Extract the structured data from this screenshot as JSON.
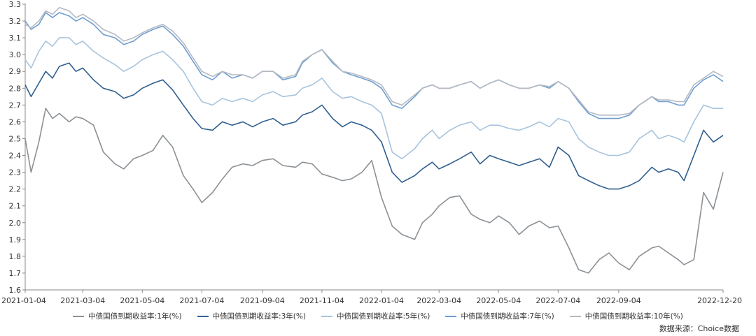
{
  "chart_data": {
    "type": "line",
    "xlabel": "",
    "ylabel": "",
    "ylim": [
      1.6,
      3.3
    ],
    "yticks": [
      "1.6",
      "1.7",
      "1.8",
      "1.9",
      "2.0",
      "2.1",
      "2.2",
      "2.3",
      "2.4",
      "2.5",
      "2.6",
      "2.7",
      "2.8",
      "2.9",
      "3.0",
      "3.1",
      "3.2",
      "3.3"
    ],
    "x_tick_labels": [
      "2021-01-04",
      "2021-03-04",
      "2021-05-04",
      "2021-07-04",
      "2021-09-04",
      "2021-11-04",
      "2022-01-04",
      "2022-03-04",
      "2022-05-04",
      "2022-07-04",
      "2022-09-04",
      "2022-12-20"
    ],
    "grid": false,
    "legend_position": "bottom",
    "source": "数据来源：Choice数据",
    "x": [
      "2021-01-04",
      "2021-01-10",
      "2021-01-18",
      "2021-01-25",
      "2021-02-01",
      "2021-02-08",
      "2021-02-18",
      "2021-02-25",
      "2021-03-04",
      "2021-03-15",
      "2021-03-25",
      "2021-04-06",
      "2021-04-15",
      "2021-04-25",
      "2021-05-04",
      "2021-05-15",
      "2021-05-25",
      "2021-06-04",
      "2021-06-15",
      "2021-06-25",
      "2021-07-04",
      "2021-07-15",
      "2021-07-25",
      "2021-08-04",
      "2021-08-15",
      "2021-08-25",
      "2021-09-04",
      "2021-09-15",
      "2021-09-25",
      "2021-10-08",
      "2021-10-15",
      "2021-10-25",
      "2021-11-04",
      "2021-11-15",
      "2021-11-25",
      "2021-12-04",
      "2021-12-15",
      "2021-12-25",
      "2022-01-04",
      "2022-01-15",
      "2022-01-25",
      "2022-02-07",
      "2022-02-15",
      "2022-02-25",
      "2022-03-04",
      "2022-03-15",
      "2022-03-25",
      "2022-04-06",
      "2022-04-15",
      "2022-04-25",
      "2022-05-04",
      "2022-05-15",
      "2022-05-25",
      "2022-06-04",
      "2022-06-15",
      "2022-06-25",
      "2022-07-04",
      "2022-07-15",
      "2022-07-25",
      "2022-08-04",
      "2022-08-15",
      "2022-08-25",
      "2022-09-04",
      "2022-09-15",
      "2022-09-25",
      "2022-10-08",
      "2022-10-15",
      "2022-10-25",
      "2022-11-04",
      "2022-11-10",
      "2022-11-20",
      "2022-11-30",
      "2022-12-10",
      "2022-12-20"
    ],
    "series": [
      {
        "name": "中债国债到期收益率:1年(%)",
        "color": "#8c9196",
        "values": [
          2.5,
          2.3,
          2.48,
          2.68,
          2.62,
          2.65,
          2.6,
          2.63,
          2.62,
          2.58,
          2.42,
          2.35,
          2.32,
          2.38,
          2.4,
          2.43,
          2.52,
          2.45,
          2.28,
          2.2,
          2.12,
          2.18,
          2.26,
          2.33,
          2.35,
          2.34,
          2.37,
          2.38,
          2.34,
          2.33,
          2.36,
          2.35,
          2.29,
          2.27,
          2.25,
          2.26,
          2.3,
          2.37,
          2.15,
          1.98,
          1.93,
          1.9,
          2.0,
          2.05,
          2.1,
          2.15,
          2.16,
          2.05,
          2.02,
          2.0,
          2.04,
          2.0,
          1.93,
          1.98,
          2.01,
          1.97,
          1.98,
          1.85,
          1.72,
          1.7,
          1.78,
          1.82,
          1.76,
          1.72,
          1.8,
          1.85,
          1.86,
          1.82,
          1.78,
          1.75,
          1.78,
          2.18,
          2.08,
          2.3
        ]
      },
      {
        "name": "中债国债到期收益率:3年(%)",
        "color": "#2f5f8f",
        "values": [
          2.82,
          2.75,
          2.83,
          2.9,
          2.86,
          2.93,
          2.95,
          2.9,
          2.92,
          2.85,
          2.8,
          2.78,
          2.74,
          2.76,
          2.8,
          2.83,
          2.85,
          2.79,
          2.7,
          2.62,
          2.56,
          2.55,
          2.6,
          2.58,
          2.6,
          2.57,
          2.6,
          2.62,
          2.58,
          2.6,
          2.64,
          2.66,
          2.7,
          2.62,
          2.57,
          2.6,
          2.58,
          2.55,
          2.48,
          2.3,
          2.24,
          2.28,
          2.32,
          2.36,
          2.32,
          2.35,
          2.38,
          2.42,
          2.35,
          2.4,
          2.38,
          2.36,
          2.34,
          2.36,
          2.38,
          2.33,
          2.45,
          2.4,
          2.28,
          2.25,
          2.22,
          2.2,
          2.2,
          2.22,
          2.25,
          2.33,
          2.3,
          2.32,
          2.3,
          2.25,
          2.4,
          2.55,
          2.48,
          2.52
        ]
      },
      {
        "name": "中债国债到期收益率:5年(%)",
        "color": "#a7c4de",
        "values": [
          2.97,
          2.92,
          3.02,
          3.08,
          3.05,
          3.1,
          3.1,
          3.06,
          3.08,
          3.02,
          2.98,
          2.94,
          2.9,
          2.93,
          2.97,
          3.0,
          3.02,
          2.97,
          2.9,
          2.8,
          2.72,
          2.7,
          2.74,
          2.72,
          2.74,
          2.72,
          2.76,
          2.78,
          2.75,
          2.76,
          2.8,
          2.82,
          2.86,
          2.78,
          2.74,
          2.75,
          2.72,
          2.7,
          2.65,
          2.42,
          2.38,
          2.44,
          2.5,
          2.55,
          2.5,
          2.55,
          2.58,
          2.6,
          2.55,
          2.58,
          2.58,
          2.56,
          2.55,
          2.57,
          2.6,
          2.57,
          2.62,
          2.6,
          2.5,
          2.45,
          2.42,
          2.4,
          2.4,
          2.42,
          2.5,
          2.55,
          2.5,
          2.52,
          2.5,
          2.48,
          2.6,
          2.7,
          2.68,
          2.68
        ]
      },
      {
        "name": "中债国债到期收益率:7年(%)",
        "color": "#6e9ed0",
        "values": [
          3.2,
          3.15,
          3.18,
          3.25,
          3.22,
          3.25,
          3.23,
          3.2,
          3.22,
          3.18,
          3.12,
          3.1,
          3.06,
          3.08,
          3.12,
          3.15,
          3.17,
          3.12,
          3.05,
          2.96,
          2.88,
          2.85,
          2.9,
          2.86,
          2.88,
          2.86,
          2.9,
          2.9,
          2.85,
          2.87,
          2.95,
          3.0,
          3.03,
          2.95,
          2.9,
          2.88,
          2.86,
          2.84,
          2.8,
          2.7,
          2.68,
          2.75,
          2.8,
          2.82,
          2.8,
          2.8,
          2.82,
          2.84,
          2.8,
          2.83,
          2.85,
          2.82,
          2.8,
          2.8,
          2.82,
          2.8,
          2.84,
          2.8,
          2.72,
          2.65,
          2.62,
          2.62,
          2.62,
          2.64,
          2.7,
          2.75,
          2.72,
          2.72,
          2.7,
          2.7,
          2.8,
          2.85,
          2.88,
          2.84
        ]
      },
      {
        "name": "中债国债到期收益率:10年(%)",
        "color": "#b5b9c2",
        "values": [
          3.18,
          3.16,
          3.2,
          3.26,
          3.24,
          3.28,
          3.26,
          3.22,
          3.24,
          3.2,
          3.15,
          3.12,
          3.08,
          3.1,
          3.13,
          3.16,
          3.18,
          3.14,
          3.07,
          2.98,
          2.9,
          2.87,
          2.9,
          2.88,
          2.88,
          2.86,
          2.9,
          2.9,
          2.86,
          2.88,
          2.96,
          3.0,
          3.03,
          2.96,
          2.9,
          2.89,
          2.87,
          2.85,
          2.82,
          2.72,
          2.7,
          2.76,
          2.8,
          2.82,
          2.8,
          2.8,
          2.82,
          2.84,
          2.8,
          2.83,
          2.85,
          2.82,
          2.8,
          2.8,
          2.82,
          2.81,
          2.84,
          2.8,
          2.73,
          2.66,
          2.64,
          2.64,
          2.64,
          2.65,
          2.7,
          2.75,
          2.73,
          2.73,
          2.72,
          2.72,
          2.82,
          2.86,
          2.9,
          2.87
        ]
      }
    ]
  }
}
